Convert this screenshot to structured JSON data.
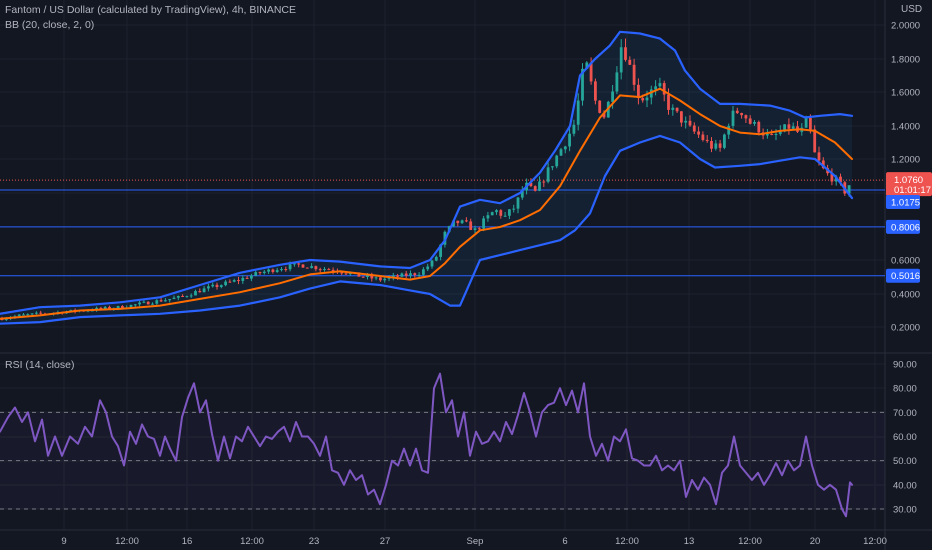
{
  "header": {
    "symbol_title": "Fantom / US Dollar (calculated by TradingView), 4h, BINANCE",
    "bb_legend": "BB (20, close, 2, 0)",
    "rsi_legend": "RSI (14, close)",
    "currency": "USD"
  },
  "colors": {
    "background": "#131722",
    "up": "#26a69a",
    "down": "#ef5350",
    "bb_band": "#2962ff",
    "bb_basis": "#ff6d00",
    "rsi_line": "#7e57c2",
    "hline": "#2962ff",
    "price_tag": "#ef5350"
  },
  "chart_data": [
    {
      "type": "candlestick",
      "x_ticks": [
        "9",
        "12:00",
        "16",
        "12:00",
        "23",
        "27",
        "Sep",
        "6",
        "12:00",
        "13",
        "12:00",
        "20",
        "12:00"
      ],
      "y_ticks": [
        "2.0000",
        "1.8000",
        "1.6000",
        "1.4000",
        "1.2000",
        "0.6000",
        "0.4000",
        "0.2000"
      ],
      "ylim": [
        0.1,
        2.1
      ],
      "current_price": "1.0760",
      "countdown": "01:01:17",
      "horizontal_levels": [
        "1.0175",
        "0.8006",
        "0.5016"
      ],
      "close_path": [
        [
          0,
          0.25
        ],
        [
          20,
          0.27
        ],
        [
          40,
          0.28
        ],
        [
          60,
          0.29
        ],
        [
          80,
          0.3
        ],
        [
          100,
          0.31
        ],
        [
          120,
          0.32
        ],
        [
          140,
          0.34
        ],
        [
          160,
          0.36
        ],
        [
          180,
          0.38
        ],
        [
          200,
          0.42
        ],
        [
          220,
          0.45
        ],
        [
          240,
          0.48
        ],
        [
          260,
          0.52
        ],
        [
          280,
          0.55
        ],
        [
          300,
          0.57
        ],
        [
          320,
          0.55
        ],
        [
          340,
          0.53
        ],
        [
          360,
          0.5
        ],
        [
          380,
          0.48
        ],
        [
          400,
          0.5
        ],
        [
          420,
          0.52
        ],
        [
          435,
          0.6
        ],
        [
          445,
          0.76
        ],
        [
          455,
          0.83
        ],
        [
          465,
          0.82
        ],
        [
          475,
          0.78
        ],
        [
          485,
          0.84
        ],
        [
          495,
          0.9
        ],
        [
          505,
          0.86
        ],
        [
          515,
          0.92
        ],
        [
          525,
          1.05
        ],
        [
          535,
          1.0
        ],
        [
          545,
          1.1
        ],
        [
          555,
          1.2
        ],
        [
          565,
          1.3
        ],
        [
          575,
          1.42
        ],
        [
          585,
          1.8
        ],
        [
          595,
          1.55
        ],
        [
          605,
          1.45
        ],
        [
          615,
          1.7
        ],
        [
          622,
          1.9
        ],
        [
          630,
          1.75
        ],
        [
          640,
          1.55
        ],
        [
          650,
          1.6
        ],
        [
          660,
          1.62
        ],
        [
          670,
          1.5
        ],
        [
          680,
          1.45
        ],
        [
          690,
          1.38
        ],
        [
          700,
          1.34
        ],
        [
          710,
          1.28
        ],
        [
          720,
          1.26
        ],
        [
          730,
          1.45
        ],
        [
          740,
          1.5
        ],
        [
          750,
          1.42
        ],
        [
          760,
          1.38
        ],
        [
          770,
          1.32
        ],
        [
          780,
          1.36
        ],
        [
          790,
          1.4
        ],
        [
          800,
          1.35
        ],
        [
          808,
          1.44
        ],
        [
          815,
          1.22
        ],
        [
          825,
          1.12
        ],
        [
          835,
          1.08
        ],
        [
          845,
          1.01
        ],
        [
          852,
          1.076
        ]
      ],
      "bb_upper": [
        [
          0,
          0.28
        ],
        [
          40,
          0.32
        ],
        [
          80,
          0.33
        ],
        [
          120,
          0.35
        ],
        [
          160,
          0.38
        ],
        [
          200,
          0.45
        ],
        [
          240,
          0.52
        ],
        [
          280,
          0.57
        ],
        [
          310,
          0.6
        ],
        [
          340,
          0.59
        ],
        [
          380,
          0.56
        ],
        [
          410,
          0.55
        ],
        [
          430,
          0.6
        ],
        [
          445,
          0.72
        ],
        [
          460,
          0.92
        ],
        [
          480,
          0.96
        ],
        [
          500,
          0.94
        ],
        [
          520,
          1.0
        ],
        [
          540,
          1.12
        ],
        [
          555,
          1.25
        ],
        [
          570,
          1.4
        ],
        [
          580,
          1.7
        ],
        [
          595,
          1.8
        ],
        [
          610,
          1.88
        ],
        [
          620,
          1.96
        ],
        [
          640,
          1.95
        ],
        [
          660,
          1.92
        ],
        [
          675,
          1.85
        ],
        [
          685,
          1.73
        ],
        [
          700,
          1.62
        ],
        [
          720,
          1.53
        ],
        [
          740,
          1.53
        ],
        [
          770,
          1.52
        ],
        [
          790,
          1.49
        ],
        [
          805,
          1.45
        ],
        [
          820,
          1.46
        ],
        [
          840,
          1.47
        ],
        [
          852,
          1.46
        ]
      ],
      "bb_basis": [
        [
          0,
          0.25
        ],
        [
          40,
          0.27
        ],
        [
          80,
          0.3
        ],
        [
          120,
          0.31
        ],
        [
          160,
          0.33
        ],
        [
          200,
          0.37
        ],
        [
          240,
          0.41
        ],
        [
          280,
          0.46
        ],
        [
          310,
          0.51
        ],
        [
          340,
          0.53
        ],
        [
          380,
          0.5
        ],
        [
          410,
          0.48
        ],
        [
          430,
          0.5
        ],
        [
          445,
          0.58
        ],
        [
          460,
          0.68
        ],
        [
          480,
          0.78
        ],
        [
          500,
          0.8
        ],
        [
          520,
          0.84
        ],
        [
          540,
          0.9
        ],
        [
          560,
          1.04
        ],
        [
          580,
          1.25
        ],
        [
          600,
          1.45
        ],
        [
          620,
          1.58
        ],
        [
          640,
          1.57
        ],
        [
          660,
          1.62
        ],
        [
          680,
          1.55
        ],
        [
          700,
          1.47
        ],
        [
          720,
          1.4
        ],
        [
          740,
          1.36
        ],
        [
          760,
          1.35
        ],
        [
          780,
          1.37
        ],
        [
          800,
          1.38
        ],
        [
          815,
          1.37
        ],
        [
          835,
          1.3
        ],
        [
          852,
          1.2
        ]
      ],
      "bb_lower": [
        [
          0,
          0.22
        ],
        [
          40,
          0.23
        ],
        [
          80,
          0.26
        ],
        [
          120,
          0.27
        ],
        [
          160,
          0.28
        ],
        [
          200,
          0.3
        ],
        [
          240,
          0.33
        ],
        [
          280,
          0.38
        ],
        [
          310,
          0.43
        ],
        [
          340,
          0.47
        ],
        [
          380,
          0.45
        ],
        [
          410,
          0.42
        ],
        [
          430,
          0.4
        ],
        [
          450,
          0.33
        ],
        [
          460,
          0.33
        ],
        [
          480,
          0.6
        ],
        [
          500,
          0.63
        ],
        [
          520,
          0.66
        ],
        [
          540,
          0.69
        ],
        [
          560,
          0.72
        ],
        [
          575,
          0.78
        ],
        [
          590,
          0.88
        ],
        [
          605,
          1.1
        ],
        [
          620,
          1.25
        ],
        [
          640,
          1.3
        ],
        [
          660,
          1.34
        ],
        [
          680,
          1.3
        ],
        [
          700,
          1.2
        ],
        [
          715,
          1.15
        ],
        [
          740,
          1.16
        ],
        [
          760,
          1.17
        ],
        [
          780,
          1.19
        ],
        [
          800,
          1.21
        ],
        [
          815,
          1.2
        ],
        [
          835,
          1.1
        ],
        [
          852,
          0.97
        ]
      ]
    },
    {
      "type": "line",
      "name": "RSI (14, close)",
      "y_ticks": [
        "90.00",
        "80.00",
        "70.00",
        "60.00",
        "50.00",
        "40.00",
        "30.00"
      ],
      "ylim": [
        23,
        92
      ],
      "guide_levels": [
        70,
        50,
        30
      ],
      "values": [
        [
          0,
          62
        ],
        [
          8,
          68
        ],
        [
          15,
          72
        ],
        [
          22,
          66
        ],
        [
          28,
          70
        ],
        [
          35,
          58
        ],
        [
          42,
          67
        ],
        [
          48,
          52
        ],
        [
          55,
          60
        ],
        [
          62,
          52
        ],
        [
          70,
          60
        ],
        [
          78,
          57
        ],
        [
          85,
          64
        ],
        [
          92,
          60
        ],
        [
          100,
          75
        ],
        [
          106,
          70
        ],
        [
          112,
          60
        ],
        [
          118,
          56
        ],
        [
          124,
          48
        ],
        [
          130,
          62
        ],
        [
          136,
          57
        ],
        [
          142,
          65
        ],
        [
          148,
          60
        ],
        [
          154,
          59
        ],
        [
          160,
          52
        ],
        [
          165,
          60
        ],
        [
          170,
          55
        ],
        [
          176,
          50
        ],
        [
          182,
          68
        ],
        [
          188,
          76
        ],
        [
          194,
          82
        ],
        [
          200,
          70
        ],
        [
          206,
          75
        ],
        [
          212,
          61
        ],
        [
          218,
          50
        ],
        [
          224,
          60
        ],
        [
          230,
          51
        ],
        [
          236,
          60
        ],
        [
          242,
          58
        ],
        [
          248,
          64
        ],
        [
          254,
          60
        ],
        [
          260,
          56
        ],
        [
          266,
          60
        ],
        [
          272,
          59
        ],
        [
          278,
          62
        ],
        [
          284,
          64
        ],
        [
          290,
          58
        ],
        [
          296,
          66
        ],
        [
          302,
          60
        ],
        [
          308,
          60
        ],
        [
          314,
          57
        ],
        [
          320,
          52
        ],
        [
          326,
          60
        ],
        [
          332,
          46
        ],
        [
          338,
          45
        ],
        [
          344,
          40
        ],
        [
          350,
          46
        ],
        [
          356,
          42
        ],
        [
          362,
          44
        ],
        [
          368,
          36
        ],
        [
          374,
          38
        ],
        [
          380,
          32
        ],
        [
          386,
          40
        ],
        [
          392,
          50
        ],
        [
          398,
          48
        ],
        [
          404,
          55
        ],
        [
          410,
          48
        ],
        [
          416,
          55
        ],
        [
          422,
          46
        ],
        [
          428,
          45
        ],
        [
          434,
          80
        ],
        [
          440,
          86
        ],
        [
          446,
          70
        ],
        [
          452,
          75
        ],
        [
          458,
          60
        ],
        [
          464,
          70
        ],
        [
          470,
          52
        ],
        [
          476,
          62
        ],
        [
          482,
          57
        ],
        [
          488,
          58
        ],
        [
          494,
          62
        ],
        [
          500,
          58
        ],
        [
          506,
          66
        ],
        [
          512,
          61
        ],
        [
          518,
          69
        ],
        [
          524,
          78
        ],
        [
          530,
          70
        ],
        [
          536,
          60
        ],
        [
          542,
          70
        ],
        [
          548,
          73
        ],
        [
          554,
          74
        ],
        [
          560,
          80
        ],
        [
          566,
          73
        ],
        [
          572,
          79
        ],
        [
          578,
          70
        ],
        [
          584,
          82
        ],
        [
          590,
          60
        ],
        [
          596,
          52
        ],
        [
          602,
          57
        ],
        [
          608,
          50
        ],
        [
          614,
          60
        ],
        [
          620,
          58
        ],
        [
          626,
          63
        ],
        [
          632,
          51
        ],
        [
          638,
          50
        ],
        [
          644,
          48
        ],
        [
          650,
          48
        ],
        [
          656,
          52
        ],
        [
          662,
          46
        ],
        [
          668,
          48
        ],
        [
          674,
          46
        ],
        [
          680,
          50
        ],
        [
          686,
          35
        ],
        [
          692,
          42
        ],
        [
          698,
          38
        ],
        [
          704,
          43
        ],
        [
          710,
          40
        ],
        [
          716,
          32
        ],
        [
          722,
          45
        ],
        [
          728,
          48
        ],
        [
          734,
          60
        ],
        [
          740,
          48
        ],
        [
          746,
          45
        ],
        [
          752,
          42
        ],
        [
          758,
          45
        ],
        [
          764,
          40
        ],
        [
          770,
          44
        ],
        [
          776,
          49
        ],
        [
          782,
          44
        ],
        [
          788,
          50
        ],
        [
          794,
          46
        ],
        [
          800,
          48
        ],
        [
          806,
          60
        ],
        [
          812,
          48
        ],
        [
          818,
          40
        ],
        [
          824,
          38
        ],
        [
          830,
          40
        ],
        [
          836,
          38
        ],
        [
          842,
          30
        ],
        [
          846,
          27
        ],
        [
          850,
          41
        ],
        [
          852,
          40
        ]
      ]
    }
  ]
}
